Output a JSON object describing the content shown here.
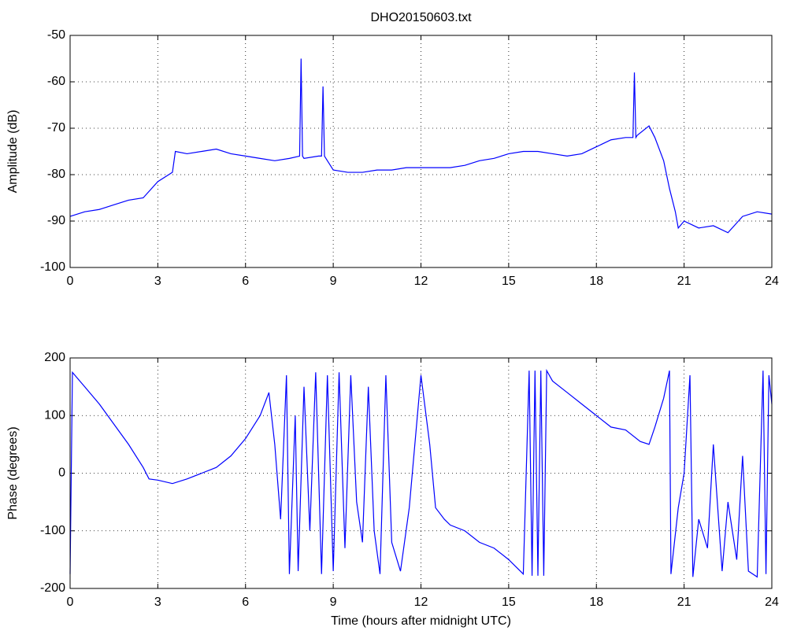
{
  "chart_data": [
    {
      "type": "line",
      "title": "DHO20150603.txt",
      "ylabel": "Amplitude (dB)",
      "x": [
        0,
        0.5,
        1,
        1.5,
        2,
        2.5,
        3,
        3.5,
        3.6,
        4,
        4.5,
        5,
        5.5,
        6,
        6.5,
        7,
        7.5,
        7.85,
        7.9,
        7.95,
        8,
        8.5,
        8.6,
        8.65,
        8.7,
        8.8,
        9,
        9.5,
        10,
        10.5,
        11,
        11.5,
        12,
        12.5,
        13,
        13.5,
        14,
        14.5,
        15,
        15.5,
        16,
        16.5,
        17,
        17.5,
        18,
        18.5,
        19,
        19.25,
        19.3,
        19.35,
        19.4,
        19.8,
        20,
        20.3,
        20.5,
        20.7,
        20.8,
        21,
        21.5,
        22,
        22.5,
        23,
        23.5,
        24
      ],
      "series": [
        {
          "color": "#0000ff",
          "values": [
            -89,
            -88,
            -87.5,
            -86.5,
            -85.5,
            -85,
            -81.5,
            -79.5,
            -75,
            -75.5,
            -75,
            -74.5,
            -75.5,
            -76,
            -76.5,
            -77,
            -76.5,
            -76,
            -55,
            -76,
            -76.5,
            -76,
            -76,
            -61,
            -76,
            -77,
            -79,
            -79.5,
            -79.5,
            -79,
            -79,
            -78.5,
            -78.5,
            -78.5,
            -78.5,
            -78,
            -77,
            -76.5,
            -75.5,
            -75,
            -75,
            -75.5,
            -76,
            -75.5,
            -74,
            -72.5,
            -72,
            -72,
            -58,
            -72,
            -71.5,
            -69.5,
            -72,
            -77,
            -83,
            -88,
            -91.5,
            -90,
            -91.5,
            -91,
            -92.5,
            -89,
            -88,
            -88.5
          ]
        }
      ],
      "xlim": [
        0,
        24
      ],
      "ylim": [
        -100,
        -50
      ],
      "xticks": [
        0,
        3,
        6,
        9,
        12,
        15,
        18,
        21,
        24
      ],
      "yticks": [
        -100,
        -90,
        -80,
        -70,
        -60,
        -50
      ],
      "grid": true
    },
    {
      "type": "line",
      "xlabel": "Time (hours after midnight UTC)",
      "ylabel": "Phase (degrees)",
      "x": [
        0,
        0.08,
        0.5,
        1,
        1.5,
        2,
        2.5,
        2.7,
        3,
        3.5,
        4,
        4.5,
        5,
        5.5,
        6,
        6.5,
        6.8,
        7,
        7.2,
        7.4,
        7.5,
        7.7,
        7.8,
        8,
        8.2,
        8.4,
        8.6,
        8.8,
        9,
        9.2,
        9.4,
        9.6,
        9.8,
        10,
        10.2,
        10.4,
        10.6,
        10.8,
        11,
        11.3,
        11.6,
        12,
        12.3,
        12.5,
        12.8,
        13,
        13.5,
        14,
        14.5,
        15,
        15.5,
        15.7,
        15.8,
        15.9,
        16,
        16.1,
        16.2,
        16.3,
        16.5,
        17,
        17.5,
        18,
        18.5,
        19,
        19.5,
        19.8,
        20,
        20.3,
        20.5,
        20.55,
        20.8,
        21,
        21.2,
        21.3,
        21.5,
        21.8,
        22,
        22.3,
        22.5,
        22.8,
        23,
        23.2,
        23.5,
        23.7,
        23.8,
        23.9,
        24
      ],
      "series": [
        {
          "color": "#0000ff",
          "values": [
            -175,
            175,
            150,
            120,
            85,
            50,
            10,
            -10,
            -12,
            -18,
            -10,
            0,
            10,
            30,
            60,
            100,
            140,
            50,
            -80,
            170,
            -175,
            100,
            -170,
            150,
            -100,
            175,
            -175,
            170,
            -170,
            175,
            -130,
            170,
            -50,
            -120,
            150,
            -100,
            -175,
            170,
            -120,
            -170,
            -60,
            170,
            50,
            -60,
            -80,
            -90,
            -100,
            -120,
            -130,
            -150,
            -175,
            178,
            -178,
            178,
            -178,
            178,
            -178,
            178,
            160,
            140,
            120,
            100,
            80,
            75,
            55,
            50,
            80,
            130,
            178,
            -175,
            -60,
            0,
            170,
            -180,
            -80,
            -130,
            50,
            -170,
            -50,
            -150,
            30,
            -170,
            -180,
            178,
            -175,
            170,
            120
          ]
        }
      ],
      "xlim": [
        0,
        24
      ],
      "ylim": [
        -200,
        200
      ],
      "xticks": [
        0,
        3,
        6,
        9,
        12,
        15,
        18,
        21,
        24
      ],
      "yticks": [
        -200,
        -100,
        0,
        100,
        200
      ],
      "grid": true
    }
  ]
}
